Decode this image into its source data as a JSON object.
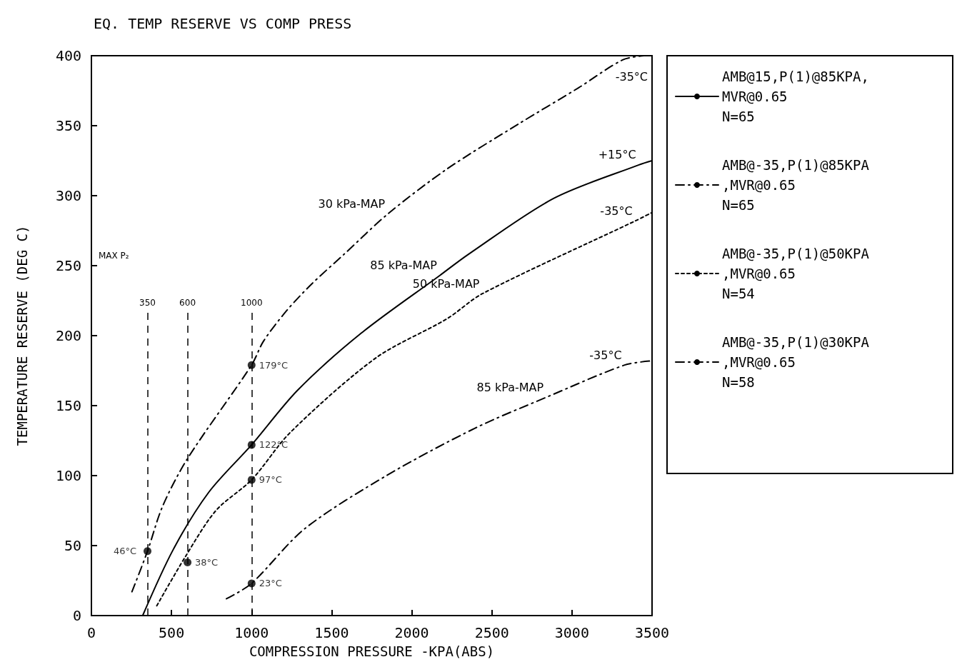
{
  "chart_data": {
    "type": "line",
    "title": "EQ. TEMP RESERVE VS COMP PRESS",
    "xlabel": "COMPRESSION PRESSURE -KPA(ABS)",
    "ylabel": "TEMPERATURE RESERVE (DEG C)",
    "xlim": [
      0,
      3500
    ],
    "ylim": [
      0,
      400
    ],
    "xticks": [
      0,
      500,
      1000,
      1500,
      2000,
      2500,
      3000,
      3500
    ],
    "yticks": [
      0,
      50,
      100,
      150,
      200,
      250,
      300,
      350,
      400
    ],
    "grid": false,
    "legend": "right",
    "marker": "none",
    "series": [
      {
        "name": "AMB@15,P(1)@85KPA,\nMVR@0.65\nN=65",
        "color": "#000000",
        "line_style": "solid",
        "x": [
          320,
          510,
          732,
          1000,
          1287,
          1687,
          2175,
          2352,
          2885,
          3418,
          3500
        ],
        "values": [
          0,
          47,
          88,
          122,
          161,
          202,
          243,
          258,
          298,
          322,
          325
        ]
      },
      {
        "name": "AMB@-35,P(1)@85KPA\n,MVR@0.65\nN=65",
        "color": "#000000",
        "line_style": "dashed",
        "x": [
          843,
          1000,
          1331,
          1842,
          2397,
          2841,
          3329,
          3500
        ],
        "values": [
          12,
          23,
          62,
          100,
          134,
          156,
          179,
          182
        ]
      },
      {
        "name": "AMB@-35,P(1)@50KPA\n,MVR@0.65\nN=54",
        "color": "#000000",
        "line_style": "dotted",
        "x": [
          408,
          586,
          777,
          1000,
          1243,
          1775,
          2219,
          2441,
          3396,
          3500
        ],
        "values": [
          7,
          42,
          75,
          97,
          131,
          184,
          212,
          230,
          282,
          288
        ]
      },
      {
        "name": "AMB@-35,P(1)@30KPA\n,MVR@0.65\nN=58",
        "color": "#000000",
        "line_style": "dashed",
        "x": [
          253,
          350,
          444,
          599,
          1000,
          1074,
          1220,
          1376,
          1576,
          1851,
          2219,
          2663,
          3040,
          3316,
          3450
        ],
        "values": [
          17,
          46,
          78,
          112,
          179,
          196,
          218,
          237,
          258,
          287,
          319,
          351,
          377,
          397,
          400
        ]
      },
      {
        "type": "scatter",
        "color": "#000000",
        "marker": "circle",
        "x": [
          350,
          600,
          1000,
          1000,
          1000,
          1000
        ],
        "values": [
          46,
          38,
          179,
          122,
          97,
          23
        ],
        "value_labels": [
          "46°C",
          "38°C",
          "179°C",
          "122°C",
          "97°C",
          "23°C"
        ]
      }
    ],
    "ref_lines": [
      {
        "axis": "x",
        "value": 350,
        "label": "350",
        "line_style": "dashed"
      },
      {
        "axis": "x",
        "value": 600,
        "label": "600",
        "line_style": "dashed"
      },
      {
        "axis": "x",
        "value": 1000,
        "label": "1000",
        "line_style": "dashed"
      }
    ],
    "annotations": [
      "MAX P₂",
      {
        "text": "30 kPa-MAP",
        "x": 1851,
        "y": 287
      },
      {
        "text": "-35°C",
        "x": 3316,
        "y": 397
      },
      {
        "text": "+15°C",
        "x": 3418,
        "y": 322
      },
      {
        "text": "85 kPa-MAP",
        "x": 2175,
        "y": 243
      },
      {
        "text": "-35°C",
        "x": 3396,
        "y": 282
      },
      {
        "text": "50 kPa-MAP",
        "x": 2441,
        "y": 230
      },
      {
        "text": "85 kPa-MAP",
        "x": 2841,
        "y": 156
      },
      {
        "text": "-35°C",
        "x": 3329,
        "y": 179
      }
    ]
  }
}
